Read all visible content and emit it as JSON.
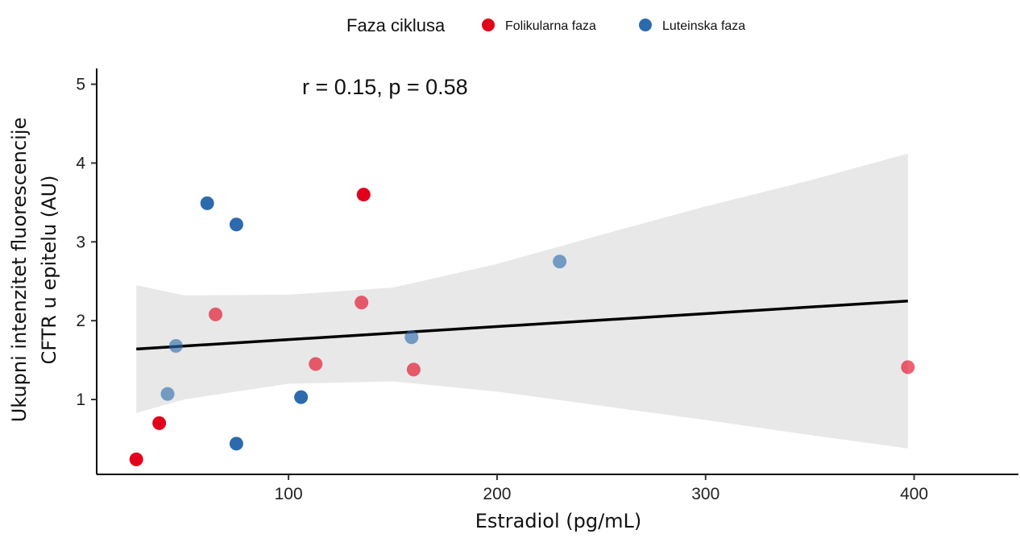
{
  "chart_data": {
    "type": "scatter",
    "xlabel": "Estradiol (pg/mL)",
    "ylabel_lines": [
      "Ukupni intenzitet fluorescencije",
      "CFTR u epitelu (AU)"
    ],
    "xlim": [
      8,
      450
    ],
    "ylim": [
      0.05,
      5.2
    ],
    "x_ticks": [
      100,
      200,
      300,
      400
    ],
    "y_ticks": [
      1,
      2,
      3,
      4,
      5
    ],
    "grid": false,
    "legend": {
      "title": "Faza ciklusa",
      "position": "top",
      "entries": [
        {
          "label": "Folikularna faza",
          "color": "#e3001b"
        },
        {
          "label": "Luteinska faza",
          "color": "#2c6aad"
        }
      ]
    },
    "annotation": "r = 0.15, p = 0.58",
    "series": [
      {
        "name": "Folikularna faza",
        "color": "#e3001b",
        "points": [
          {
            "x": 27,
            "y": 0.24
          },
          {
            "x": 38,
            "y": 0.7
          },
          {
            "x": 65,
            "y": 2.08
          },
          {
            "x": 113,
            "y": 1.45
          },
          {
            "x": 135,
            "y": 2.23
          },
          {
            "x": 136,
            "y": 3.6
          },
          {
            "x": 160,
            "y": 1.38
          },
          {
            "x": 397,
            "y": 1.41
          }
        ]
      },
      {
        "name": "Luteinska faza",
        "color": "#2c6aad",
        "points": [
          {
            "x": 42,
            "y": 1.07
          },
          {
            "x": 46,
            "y": 1.68
          },
          {
            "x": 61,
            "y": 3.49
          },
          {
            "x": 75,
            "y": 3.22
          },
          {
            "x": 75,
            "y": 0.44
          },
          {
            "x": 106,
            "y": 1.03
          },
          {
            "x": 159,
            "y": 1.79
          },
          {
            "x": 230,
            "y": 2.75
          }
        ]
      }
    ],
    "regression": {
      "x": [
        27,
        397
      ],
      "y": [
        1.64,
        2.25
      ],
      "color": "#000000"
    },
    "confidence_band": {
      "color": "#e8e8e8",
      "x": [
        27,
        50,
        100,
        150,
        200,
        250,
        300,
        350,
        397
      ],
      "lower": [
        0.83,
        1.0,
        1.2,
        1.23,
        1.1,
        0.92,
        0.74,
        0.55,
        0.38
      ],
      "upper": [
        2.45,
        2.32,
        2.33,
        2.42,
        2.72,
        3.09,
        3.45,
        3.78,
        4.12
      ]
    }
  }
}
